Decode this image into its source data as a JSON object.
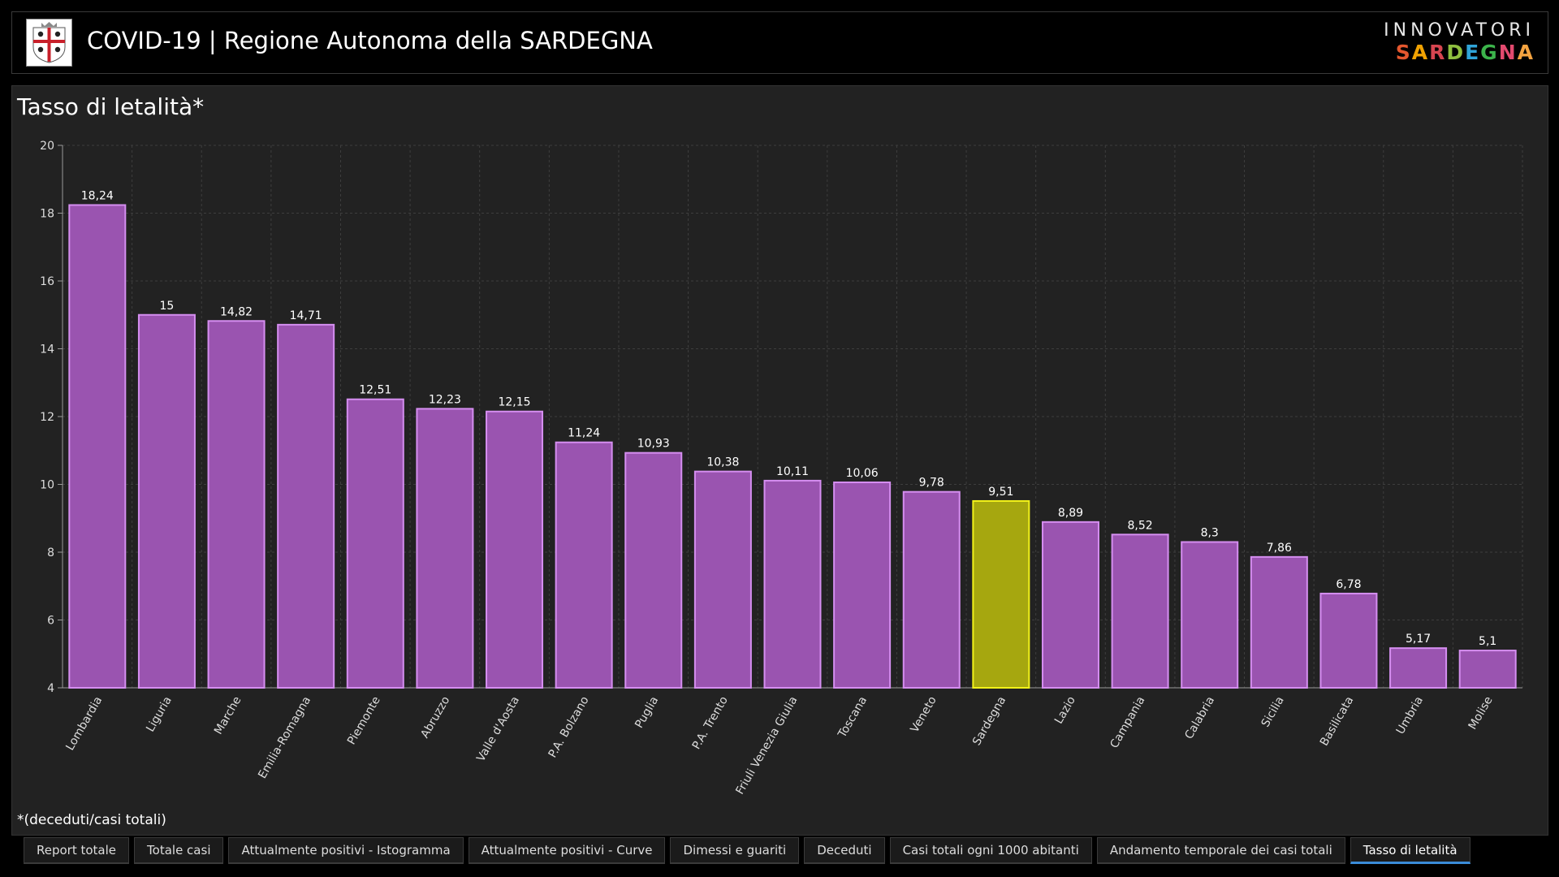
{
  "header": {
    "title": "COVID-19 | Regione Autonoma della SARDEGNA",
    "brand_top": "INNOVATORI",
    "brand_bottom_letters": [
      {
        "ch": "S",
        "color": "#e4572e"
      },
      {
        "ch": "A",
        "color": "#f0a202"
      },
      {
        "ch": "R",
        "color": "#d64550"
      },
      {
        "ch": "D",
        "color": "#8fbf3f"
      },
      {
        "ch": "E",
        "color": "#2fa4d8"
      },
      {
        "ch": "G",
        "color": "#3cb44b"
      },
      {
        "ch": "N",
        "color": "#e34a6f"
      },
      {
        "ch": "A",
        "color": "#f4a340"
      }
    ]
  },
  "panel": {
    "title": "Tasso di letalità*",
    "footnote": "*(deceduti/casi totali)"
  },
  "colors": {
    "bar_fill": "#9a54b0",
    "bar_stroke": "#d58ef0",
    "highlight_fill": "#a6a70f",
    "highlight_stroke": "#f2f21a",
    "grid": "#3e3e3e",
    "axis": "#9a9a9a"
  },
  "chart_data": {
    "type": "bar",
    "title": "Tasso di letalità*",
    "xlabel": "",
    "ylabel": "",
    "ylim": [
      4,
      20
    ],
    "yticks": [
      4,
      6,
      8,
      10,
      12,
      14,
      16,
      18,
      20
    ],
    "grid": true,
    "highlight": "Sardegna",
    "categories": [
      "Lombardia",
      "Liguria",
      "Marche",
      "Emilia-Romagna",
      "Piemonte",
      "Abruzzo",
      "Valle d'Aosta",
      "P.A. Bolzano",
      "Puglia",
      "P.A. Trento",
      "Friuli Venezia Giulia",
      "Toscana",
      "Veneto",
      "Sardegna",
      "Lazio",
      "Campania",
      "Calabria",
      "Sicilia",
      "Basilicata",
      "Umbria",
      "Molise"
    ],
    "values": [
      18.24,
      15,
      14.82,
      14.71,
      12.51,
      12.23,
      12.15,
      11.24,
      10.93,
      10.38,
      10.11,
      10.06,
      9.78,
      9.51,
      8.89,
      8.52,
      8.3,
      7.86,
      6.78,
      5.17,
      5.1
    ],
    "value_labels": [
      "18,24",
      "15",
      "14,82",
      "14,71",
      "12,51",
      "12,23",
      "12,15",
      "11,24",
      "10,93",
      "10,38",
      "10,11",
      "10,06",
      "9,78",
      "9,51",
      "8,89",
      "8,52",
      "8,3",
      "7,86",
      "6,78",
      "5,17",
      "5,1"
    ]
  },
  "tabs": [
    {
      "label": "Report totale",
      "active": false
    },
    {
      "label": "Totale casi",
      "active": false
    },
    {
      "label": "Attualmente positivi - Istogramma",
      "active": false
    },
    {
      "label": "Attualmente positivi - Curve",
      "active": false
    },
    {
      "label": "Dimessi e guariti",
      "active": false
    },
    {
      "label": "Deceduti",
      "active": false
    },
    {
      "label": "Casi totali ogni 1000 abitanti",
      "active": false
    },
    {
      "label": "Andamento temporale dei casi totali",
      "active": false
    },
    {
      "label": "Tasso di letalità",
      "active": true
    }
  ]
}
